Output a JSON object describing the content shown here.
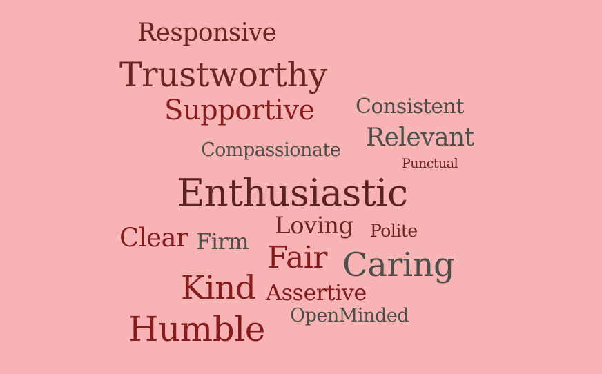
{
  "background_color": "#f8b4b4",
  "words": [
    {
      "text": "Responsive",
      "color": "#6b2424"
    },
    {
      "text": "Trustworthy",
      "color": "#6b2424"
    },
    {
      "text": "Supportive",
      "color": "#861c1c"
    },
    {
      "text": "Consistent",
      "color": "#4a5049"
    },
    {
      "text": "Relevant",
      "color": "#4a5049"
    },
    {
      "text": "Compassionate",
      "color": "#4a5049"
    },
    {
      "text": "Punctual",
      "color": "#6b2424"
    },
    {
      "text": "Enthusiastic",
      "color": "#5c2323"
    },
    {
      "text": "Loving",
      "color": "#6b2424"
    },
    {
      "text": "Polite",
      "color": "#6b2424"
    },
    {
      "text": "Clear",
      "color": "#861c1c"
    },
    {
      "text": "Firm",
      "color": "#4a5049"
    },
    {
      "text": "Fair",
      "color": "#861c1c"
    },
    {
      "text": "Caring",
      "color": "#4a5049"
    },
    {
      "text": "Kind",
      "color": "#861c1c"
    },
    {
      "text": "Assertive",
      "color": "#861c1c"
    },
    {
      "text": "OpenMinded",
      "color": "#4a5049"
    },
    {
      "text": "Humble",
      "color": "#861c1c"
    }
  ]
}
